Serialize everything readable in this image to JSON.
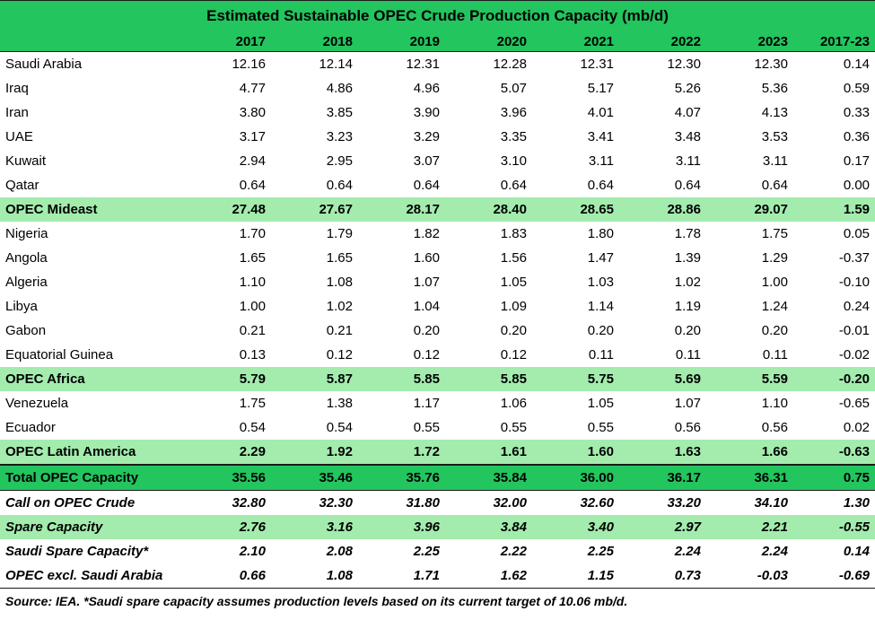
{
  "title": "Estimated Sustainable OPEC Crude Production Capacity (mb/d)",
  "columns": [
    "",
    "2017",
    "2018",
    "2019",
    "2020",
    "2021",
    "2022",
    "2023",
    "2017-23"
  ],
  "rows": [
    {
      "kind": "data",
      "label": "Saudi Arabia",
      "values": [
        "12.16",
        "12.14",
        "12.31",
        "12.28",
        "12.31",
        "12.30",
        "12.30",
        "0.14"
      ]
    },
    {
      "kind": "data",
      "label": "Iraq",
      "values": [
        "4.77",
        "4.86",
        "4.96",
        "5.07",
        "5.17",
        "5.26",
        "5.36",
        "0.59"
      ]
    },
    {
      "kind": "data",
      "label": "Iran",
      "values": [
        "3.80",
        "3.85",
        "3.90",
        "3.96",
        "4.01",
        "4.07",
        "4.13",
        "0.33"
      ]
    },
    {
      "kind": "data",
      "label": "UAE",
      "values": [
        "3.17",
        "3.23",
        "3.29",
        "3.35",
        "3.41",
        "3.48",
        "3.53",
        "0.36"
      ]
    },
    {
      "kind": "data",
      "label": "Kuwait",
      "values": [
        "2.94",
        "2.95",
        "3.07",
        "3.10",
        "3.11",
        "3.11",
        "3.11",
        "0.17"
      ]
    },
    {
      "kind": "data",
      "label": "Qatar",
      "values": [
        "0.64",
        "0.64",
        "0.64",
        "0.64",
        "0.64",
        "0.64",
        "0.64",
        "0.00"
      ]
    },
    {
      "kind": "sub",
      "label": "OPEC Mideast",
      "values": [
        "27.48",
        "27.67",
        "28.17",
        "28.40",
        "28.65",
        "28.86",
        "29.07",
        "1.59"
      ]
    },
    {
      "kind": "data",
      "label": "Nigeria",
      "values": [
        "1.70",
        "1.79",
        "1.82",
        "1.83",
        "1.80",
        "1.78",
        "1.75",
        "0.05"
      ]
    },
    {
      "kind": "data",
      "label": "Angola",
      "values": [
        "1.65",
        "1.65",
        "1.60",
        "1.56",
        "1.47",
        "1.39",
        "1.29",
        "-0.37"
      ]
    },
    {
      "kind": "data",
      "label": "Algeria",
      "values": [
        "1.10",
        "1.08",
        "1.07",
        "1.05",
        "1.03",
        "1.02",
        "1.00",
        "-0.10"
      ]
    },
    {
      "kind": "data",
      "label": "Libya",
      "values": [
        "1.00",
        "1.02",
        "1.04",
        "1.09",
        "1.14",
        "1.19",
        "1.24",
        "0.24"
      ]
    },
    {
      "kind": "data",
      "label": "Gabon",
      "values": [
        "0.21",
        "0.21",
        "0.20",
        "0.20",
        "0.20",
        "0.20",
        "0.20",
        "-0.01"
      ]
    },
    {
      "kind": "data",
      "label": "Equatorial Guinea",
      "values": [
        "0.13",
        "0.12",
        "0.12",
        "0.12",
        "0.11",
        "0.11",
        "0.11",
        "-0.02"
      ]
    },
    {
      "kind": "sub",
      "label": "OPEC Africa",
      "values": [
        "5.79",
        "5.87",
        "5.85",
        "5.85",
        "5.75",
        "5.69",
        "5.59",
        "-0.20"
      ]
    },
    {
      "kind": "data",
      "label": "Venezuela",
      "values": [
        "1.75",
        "1.38",
        "1.17",
        "1.06",
        "1.05",
        "1.07",
        "1.10",
        "-0.65"
      ]
    },
    {
      "kind": "data",
      "label": "Ecuador",
      "values": [
        "0.54",
        "0.54",
        "0.55",
        "0.55",
        "0.55",
        "0.56",
        "0.56",
        "0.02"
      ]
    },
    {
      "kind": "sub",
      "label": "OPEC Latin America",
      "values": [
        "2.29",
        "1.92",
        "1.72",
        "1.61",
        "1.60",
        "1.63",
        "1.66",
        "-0.63"
      ]
    },
    {
      "kind": "total",
      "label": "Total OPEC Capacity",
      "values": [
        "35.56",
        "35.46",
        "35.76",
        "35.84",
        "36.00",
        "36.17",
        "36.31",
        "0.75"
      ]
    },
    {
      "kind": "call",
      "label": "Call on OPEC Crude",
      "values": [
        "32.80",
        "32.30",
        "31.80",
        "32.00",
        "32.60",
        "33.20",
        "34.10",
        "1.30"
      ]
    },
    {
      "kind": "spare",
      "label": "Spare Capacity",
      "values": [
        "2.76",
        "3.16",
        "3.96",
        "3.84",
        "3.40",
        "2.97",
        "2.21",
        "-0.55"
      ]
    },
    {
      "kind": "call",
      "label": "Saudi Spare Capacity*",
      "values": [
        "2.10",
        "2.08",
        "2.25",
        "2.22",
        "2.25",
        "2.24",
        "2.24",
        "0.14"
      ]
    },
    {
      "kind": "call",
      "label": "OPEC excl. Saudi Arabia",
      "values": [
        "0.66",
        "1.08",
        "1.71",
        "1.62",
        "1.15",
        "0.73",
        "-0.03",
        "-0.69"
      ]
    }
  ],
  "footer": "Source: IEA. *Saudi spare capacity assumes production levels based on its current target of 10.06 mb/d.",
  "colors": {
    "header_green": "#22c55e",
    "subtotal_green": "#a3ecae"
  }
}
